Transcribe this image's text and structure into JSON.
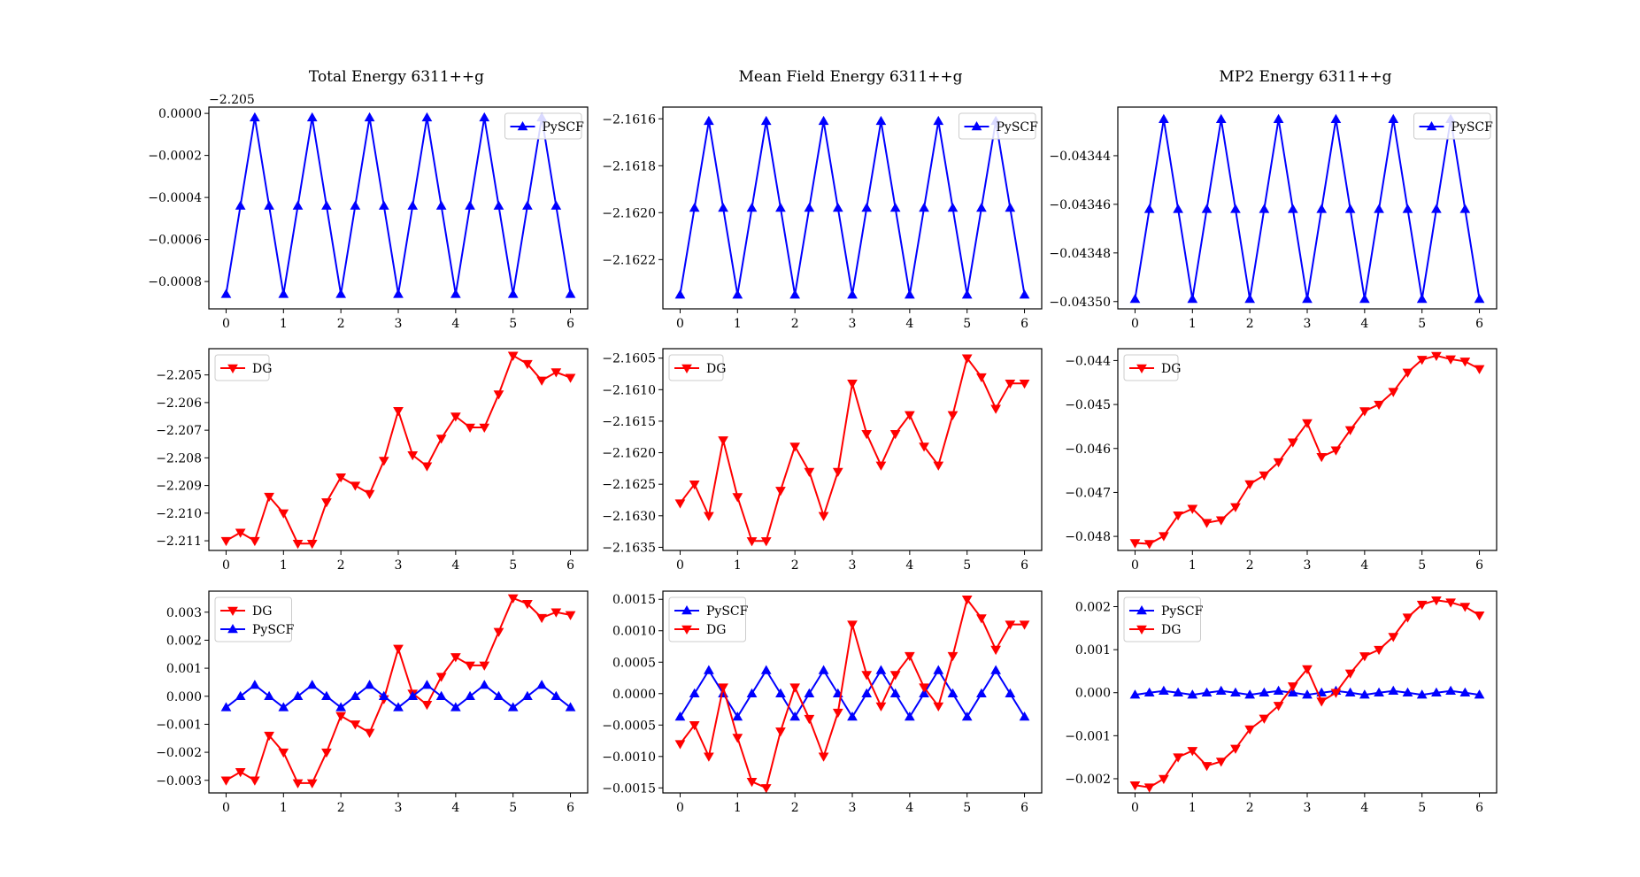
{
  "figure": {
    "background": "#ffffff"
  },
  "colors": {
    "PySCF": "#0000ff",
    "DG": "#ff0000"
  },
  "chart_data": [
    {
      "type": "line",
      "title": "Total Energy 6311++g",
      "offset_label": "−2.205",
      "x": [
        0,
        0.25,
        0.5,
        0.75,
        1,
        1.25,
        1.5,
        1.75,
        2,
        2.25,
        2.5,
        2.75,
        3,
        3.25,
        3.5,
        3.75,
        4,
        4.25,
        4.5,
        4.75,
        5,
        5.25,
        5.5,
        5.75,
        6
      ],
      "series": [
        {
          "name": "PySCF",
          "color": "#0000ff",
          "marker": "triangle-up",
          "values": [
            -0.00086,
            -0.00044,
            -2e-05,
            -0.00044,
            -0.00086,
            -0.00044,
            -2e-05,
            -0.00044,
            -0.00086,
            -0.00044,
            -2e-05,
            -0.00044,
            -0.00086,
            -0.00044,
            -2e-05,
            -0.00044,
            -0.00086,
            -0.00044,
            -2e-05,
            -0.00044,
            -0.00086,
            -0.00044,
            -2e-05,
            -0.00044,
            -0.00086
          ]
        }
      ],
      "xlim": [
        -0.3,
        6.3
      ],
      "ylim": [
        -0.00093,
        3e-05
      ],
      "xticks": [
        0,
        1,
        2,
        3,
        4,
        5,
        6
      ],
      "xtick_labels": [
        "0",
        "1",
        "2",
        "3",
        "4",
        "5",
        "6"
      ],
      "yticks": [
        -0.0008,
        -0.0006,
        -0.0004,
        -0.0002,
        0
      ],
      "ytick_labels": [
        "−0.0008",
        "−0.0006",
        "−0.0004",
        "−0.0002",
        "0.0000"
      ],
      "legend": "top-right",
      "grid": false
    },
    {
      "type": "line",
      "title": "Mean Field Energy 6311++g",
      "x": [
        0,
        0.25,
        0.5,
        0.75,
        1,
        1.25,
        1.5,
        1.75,
        2,
        2.25,
        2.5,
        2.75,
        3,
        3.25,
        3.5,
        3.75,
        4,
        4.25,
        4.5,
        4.75,
        5,
        5.25,
        5.5,
        5.75,
        6
      ],
      "series": [
        {
          "name": "PySCF",
          "color": "#0000ff",
          "marker": "triangle-up",
          "values": [
            -2.16235,
            -2.16198,
            -2.16161,
            -2.16198,
            -2.16235,
            -2.16198,
            -2.16161,
            -2.16198,
            -2.16235,
            -2.16198,
            -2.16161,
            -2.16198,
            -2.16235,
            -2.16198,
            -2.16161,
            -2.16198,
            -2.16235,
            -2.16198,
            -2.16161,
            -2.16198,
            -2.16235,
            -2.16198,
            -2.16161,
            -2.16198,
            -2.16235
          ]
        }
      ],
      "xlim": [
        -0.3,
        6.3
      ],
      "ylim": [
        -2.16241,
        -2.16155
      ],
      "xticks": [
        0,
        1,
        2,
        3,
        4,
        5,
        6
      ],
      "xtick_labels": [
        "0",
        "1",
        "2",
        "3",
        "4",
        "5",
        "6"
      ],
      "yticks": [
        -2.1622,
        -2.162,
        -2.1618,
        -2.1616
      ],
      "ytick_labels": [
        "−2.1622",
        "−2.1620",
        "−2.1618",
        "−2.1616"
      ],
      "legend": "top-right",
      "grid": false
    },
    {
      "type": "line",
      "title": "MP2 Energy 6311++g",
      "x": [
        0,
        0.25,
        0.5,
        0.75,
        1,
        1.25,
        1.5,
        1.75,
        2,
        2.25,
        2.5,
        2.75,
        3,
        3.25,
        3.5,
        3.75,
        4,
        4.25,
        4.5,
        4.75,
        5,
        5.25,
        5.5,
        5.75,
        6
      ],
      "series": [
        {
          "name": "PySCF",
          "color": "#0000ff",
          "marker": "triangle-up",
          "values": [
            -0.043499,
            -0.043462,
            -0.043425,
            -0.043462,
            -0.043499,
            -0.043462,
            -0.043425,
            -0.043462,
            -0.043499,
            -0.043462,
            -0.043425,
            -0.043462,
            -0.043499,
            -0.043462,
            -0.043425,
            -0.043462,
            -0.043499,
            -0.043462,
            -0.043425,
            -0.043462,
            -0.043499,
            -0.043462,
            -0.043425,
            -0.043462,
            -0.043499
          ]
        }
      ],
      "xlim": [
        -0.3,
        6.3
      ],
      "ylim": [
        -0.043503,
        -0.04342
      ],
      "xticks": [
        0,
        1,
        2,
        3,
        4,
        5,
        6
      ],
      "xtick_labels": [
        "0",
        "1",
        "2",
        "3",
        "4",
        "5",
        "6"
      ],
      "yticks": [
        -0.0435,
        -0.04348,
        -0.04346,
        -0.04344
      ],
      "ytick_labels": [
        "−0.04350",
        "−0.04348",
        "−0.04346",
        "−0.04344"
      ],
      "legend": "top-right",
      "grid": false
    },
    {
      "type": "line",
      "x": [
        0,
        0.25,
        0.5,
        0.75,
        1,
        1.25,
        1.5,
        1.75,
        2,
        2.25,
        2.5,
        2.75,
        3,
        3.25,
        3.5,
        3.75,
        4,
        4.25,
        4.5,
        4.75,
        5,
        5.25,
        5.5,
        5.75,
        6
      ],
      "series": [
        {
          "name": "DG",
          "color": "#ff0000",
          "marker": "triangle-down",
          "values": [
            -2.211,
            -2.2107,
            -2.211,
            -2.2094,
            -2.21,
            -2.2111,
            -2.2111,
            -2.2096,
            -2.2087,
            -2.209,
            -2.2093,
            -2.2081,
            -2.2063,
            -2.2079,
            -2.2083,
            -2.2073,
            -2.2065,
            -2.2069,
            -2.2069,
            -2.2057,
            -2.2043,
            -2.2046,
            -2.2052,
            -2.2049,
            -2.2051
          ]
        }
      ],
      "xlim": [
        -0.3,
        6.3
      ],
      "ylim": [
        -2.21135,
        -2.20405
      ],
      "xticks": [
        0,
        1,
        2,
        3,
        4,
        5,
        6
      ],
      "xtick_labels": [
        "0",
        "1",
        "2",
        "3",
        "4",
        "5",
        "6"
      ],
      "yticks": [
        -2.211,
        -2.21,
        -2.209,
        -2.208,
        -2.207,
        -2.206,
        -2.205
      ],
      "ytick_labels": [
        "−2.211",
        "−2.210",
        "−2.209",
        "−2.208",
        "−2.207",
        "−2.206",
        "−2.205"
      ],
      "legend": "top-left",
      "grid": false
    },
    {
      "type": "line",
      "x": [
        0,
        0.25,
        0.5,
        0.75,
        1,
        1.25,
        1.5,
        1.75,
        2,
        2.25,
        2.5,
        2.75,
        3,
        3.25,
        3.5,
        3.75,
        4,
        4.25,
        4.5,
        4.75,
        5,
        5.25,
        5.5,
        5.75,
        6
      ],
      "series": [
        {
          "name": "DG",
          "color": "#ff0000",
          "marker": "triangle-down",
          "values": [
            -2.1628,
            -2.1625,
            -2.163,
            -2.1618,
            -2.1627,
            -2.1634,
            -2.1634,
            -2.1626,
            -2.1619,
            -2.1623,
            -2.163,
            -2.1623,
            -2.1609,
            -2.1617,
            -2.1622,
            -2.1617,
            -2.1614,
            -2.1619,
            -2.1622,
            -2.1614,
            -2.1605,
            -2.1608,
            -2.1613,
            -2.1609,
            -2.1609
          ]
        }
      ],
      "xlim": [
        -0.3,
        6.3
      ],
      "ylim": [
        -2.16355,
        -2.16035
      ],
      "xticks": [
        0,
        1,
        2,
        3,
        4,
        5,
        6
      ],
      "xtick_labels": [
        "0",
        "1",
        "2",
        "3",
        "4",
        "5",
        "6"
      ],
      "yticks": [
        -2.1635,
        -2.163,
        -2.1625,
        -2.162,
        -2.1615,
        -2.161,
        -2.1605
      ],
      "ytick_labels": [
        "−2.1635",
        "−2.1630",
        "−2.1625",
        "−2.1620",
        "−2.1615",
        "−2.1610",
        "−2.1605"
      ],
      "legend": "top-left",
      "grid": false
    },
    {
      "type": "line",
      "x": [
        0,
        0.25,
        0.5,
        0.75,
        1,
        1.25,
        1.5,
        1.75,
        2,
        2.25,
        2.5,
        2.75,
        3,
        3.25,
        3.5,
        3.75,
        4,
        4.25,
        4.5,
        4.75,
        5,
        5.25,
        5.5,
        5.75,
        6
      ],
      "series": [
        {
          "name": "DG",
          "color": "#ff0000",
          "marker": "triangle-down",
          "values": [
            -0.04815,
            -0.04817,
            -0.04799,
            -0.04752,
            -0.04737,
            -0.04769,
            -0.04763,
            -0.04733,
            -0.04681,
            -0.04661,
            -0.04631,
            -0.04586,
            -0.04542,
            -0.04619,
            -0.04604,
            -0.04558,
            -0.04515,
            -0.045,
            -0.04471,
            -0.04427,
            -0.04398,
            -0.04389,
            -0.04397,
            -0.04402,
            -0.04419
          ]
        }
      ],
      "xlim": [
        -0.3,
        6.3
      ],
      "ylim": [
        -0.04832,
        -0.04373
      ],
      "xticks": [
        0,
        1,
        2,
        3,
        4,
        5,
        6
      ],
      "xtick_labels": [
        "0",
        "1",
        "2",
        "3",
        "4",
        "5",
        "6"
      ],
      "yticks": [
        -0.048,
        -0.047,
        -0.046,
        -0.045,
        -0.044
      ],
      "ytick_labels": [
        "−0.048",
        "−0.047",
        "−0.046",
        "−0.045",
        "−0.044"
      ],
      "legend": "top-left",
      "grid": false
    },
    {
      "type": "line",
      "x": [
        0,
        0.25,
        0.5,
        0.75,
        1,
        1.25,
        1.5,
        1.75,
        2,
        2.25,
        2.5,
        2.75,
        3,
        3.25,
        3.5,
        3.75,
        4,
        4.25,
        4.5,
        4.75,
        5,
        5.25,
        5.5,
        5.75,
        6
      ],
      "series": [
        {
          "name": "DG",
          "color": "#ff0000",
          "marker": "triangle-down",
          "values": [
            -0.003,
            -0.0027,
            -0.003,
            -0.0014,
            -0.002,
            -0.0031,
            -0.0031,
            -0.002,
            -0.0007,
            -0.001,
            -0.0013,
            -0.0001,
            0.0017,
            0.0001,
            -0.0003,
            0.0007,
            0.0014,
            0.0011,
            0.0011,
            0.0023,
            0.0035,
            0.0033,
            0.0028,
            0.003,
            0.0029
          ]
        },
        {
          "name": "PySCF",
          "color": "#0000ff",
          "marker": "triangle-up",
          "values": [
            -0.0004,
            0.0,
            0.0004,
            0.0,
            -0.0004,
            0.0,
            0.0004,
            0.0,
            -0.0004,
            0.0,
            0.0004,
            0.0,
            -0.0004,
            0.0,
            0.0004,
            0.0,
            -0.0004,
            0.0,
            0.0004,
            0.0,
            -0.0004,
            0.0,
            0.0004,
            0.0,
            -0.0004
          ]
        }
      ],
      "xlim": [
        -0.3,
        6.3
      ],
      "ylim": [
        -0.00345,
        0.00375
      ],
      "xticks": [
        0,
        1,
        2,
        3,
        4,
        5,
        6
      ],
      "xtick_labels": [
        "0",
        "1",
        "2",
        "3",
        "4",
        "5",
        "6"
      ],
      "yticks": [
        -0.003,
        -0.002,
        -0.001,
        0,
        0.001,
        0.002,
        0.003
      ],
      "ytick_labels": [
        "−0.003",
        "−0.002",
        "−0.001",
        "0.000",
        "0.001",
        "0.002",
        "0.003"
      ],
      "legend": "top-left",
      "grid": false
    },
    {
      "type": "line",
      "x": [
        0,
        0.25,
        0.5,
        0.75,
        1,
        1.25,
        1.5,
        1.75,
        2,
        2.25,
        2.5,
        2.75,
        3,
        3.25,
        3.5,
        3.75,
        4,
        4.25,
        4.5,
        4.75,
        5,
        5.25,
        5.5,
        5.75,
        6
      ],
      "series": [
        {
          "name": "PySCF",
          "color": "#0000ff",
          "marker": "triangle-up",
          "values": [
            -0.00037,
            0.0,
            0.00037,
            0.0,
            -0.00037,
            0.0,
            0.00037,
            0.0,
            -0.00037,
            0.0,
            0.00037,
            0.0,
            -0.00037,
            0.0,
            0.00037,
            0.0,
            -0.00037,
            0.0,
            0.00037,
            0.0,
            -0.00037,
            0.0,
            0.00037,
            0.0,
            -0.00037
          ]
        },
        {
          "name": "DG",
          "color": "#ff0000",
          "marker": "triangle-down",
          "values": [
            -0.0008,
            -0.0005,
            -0.001,
            0.0001,
            -0.0007,
            -0.0014,
            -0.0015,
            -0.0006,
            0.0001,
            -0.0004,
            -0.001,
            -0.0003,
            0.0011,
            0.0003,
            -0.0002,
            0.0003,
            0.0006,
            0.0001,
            -0.0002,
            0.0006,
            0.0015,
            0.0012,
            0.0007,
            0.0011,
            0.0011
          ]
        }
      ],
      "xlim": [
        -0.3,
        6.3
      ],
      "ylim": [
        -0.00158,
        0.00163
      ],
      "xticks": [
        0,
        1,
        2,
        3,
        4,
        5,
        6
      ],
      "xtick_labels": [
        "0",
        "1",
        "2",
        "3",
        "4",
        "5",
        "6"
      ],
      "yticks": [
        -0.0015,
        -0.001,
        -0.0005,
        0,
        0.0005,
        0.001,
        0.0015
      ],
      "ytick_labels": [
        "−0.0015",
        "−0.0010",
        "−0.0005",
        "0.0000",
        "0.0005",
        "0.0010",
        "0.0015"
      ],
      "legend": "top-left",
      "grid": false
    },
    {
      "type": "line",
      "x": [
        0,
        0.25,
        0.5,
        0.75,
        1,
        1.25,
        1.5,
        1.75,
        2,
        2.25,
        2.5,
        2.75,
        3,
        3.25,
        3.5,
        3.75,
        4,
        4.25,
        4.5,
        4.75,
        5,
        5.25,
        5.5,
        5.75,
        6
      ],
      "series": [
        {
          "name": "PySCF",
          "color": "#0000ff",
          "marker": "triangle-up",
          "values": [
            -5e-05,
            0.0,
            4e-05,
            0.0,
            -5e-05,
            0.0,
            4e-05,
            0.0,
            -5e-05,
            0.0,
            4e-05,
            0.0,
            -5e-05,
            0.0,
            4e-05,
            0.0,
            -5e-05,
            0.0,
            4e-05,
            0.0,
            -5e-05,
            0.0,
            4e-05,
            0.0,
            -5e-05
          ]
        },
        {
          "name": "DG",
          "color": "#ff0000",
          "marker": "triangle-down",
          "values": [
            -0.00215,
            -0.0022,
            -0.002,
            -0.0015,
            -0.00135,
            -0.0017,
            -0.0016,
            -0.0013,
            -0.00085,
            -0.0006,
            -0.0003,
            0.00015,
            0.00055,
            -0.0002,
            0.0,
            0.00045,
            0.00085,
            0.001,
            0.0013,
            0.00175,
            0.00205,
            0.00215,
            0.0021,
            0.002,
            0.0018
          ]
        }
      ],
      "xlim": [
        -0.3,
        6.3
      ],
      "ylim": [
        -0.00233,
        0.00236
      ],
      "xticks": [
        0,
        1,
        2,
        3,
        4,
        5,
        6
      ],
      "xtick_labels": [
        "0",
        "1",
        "2",
        "3",
        "4",
        "5",
        "6"
      ],
      "yticks": [
        -0.002,
        -0.001,
        0,
        0.001,
        0.002
      ],
      "ytick_labels": [
        "−0.002",
        "−0.001",
        "0.000",
        "0.001",
        "0.002"
      ],
      "legend": "top-left",
      "grid": false
    }
  ]
}
